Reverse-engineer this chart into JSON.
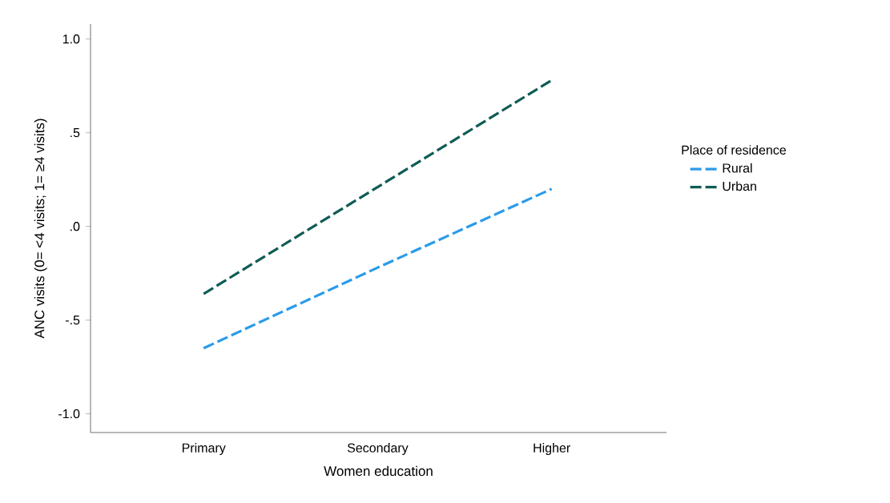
{
  "chart_data": {
    "type": "line",
    "xlabel": "Women education",
    "ylabel": "ANC visits (0= <4 visits; 1= ≥4 visits)",
    "legend_title": "Place of residence",
    "categories": [
      "Primary",
      "Secondary",
      "Higher"
    ],
    "series": [
      {
        "name": "Rural",
        "color": "#2a9bea",
        "values": [
          -0.65,
          -0.22,
          0.2
        ]
      },
      {
        "name": "Urban",
        "color": "#0f5c55",
        "values": [
          -0.36,
          0.21,
          0.78
        ]
      }
    ],
    "ylim": [
      -1.1,
      1.08
    ],
    "yticks": [
      {
        "value": -1.0,
        "label": "-1.0"
      },
      {
        "value": -0.5,
        "label": "-.5"
      },
      {
        "value": 0.0,
        "label": ".0"
      },
      {
        "value": 0.5,
        "label": ".5"
      },
      {
        "value": 1.0,
        "label": "1.0"
      }
    ],
    "grid": false,
    "legend": "right",
    "marker": "none",
    "line_style": "dashed"
  }
}
